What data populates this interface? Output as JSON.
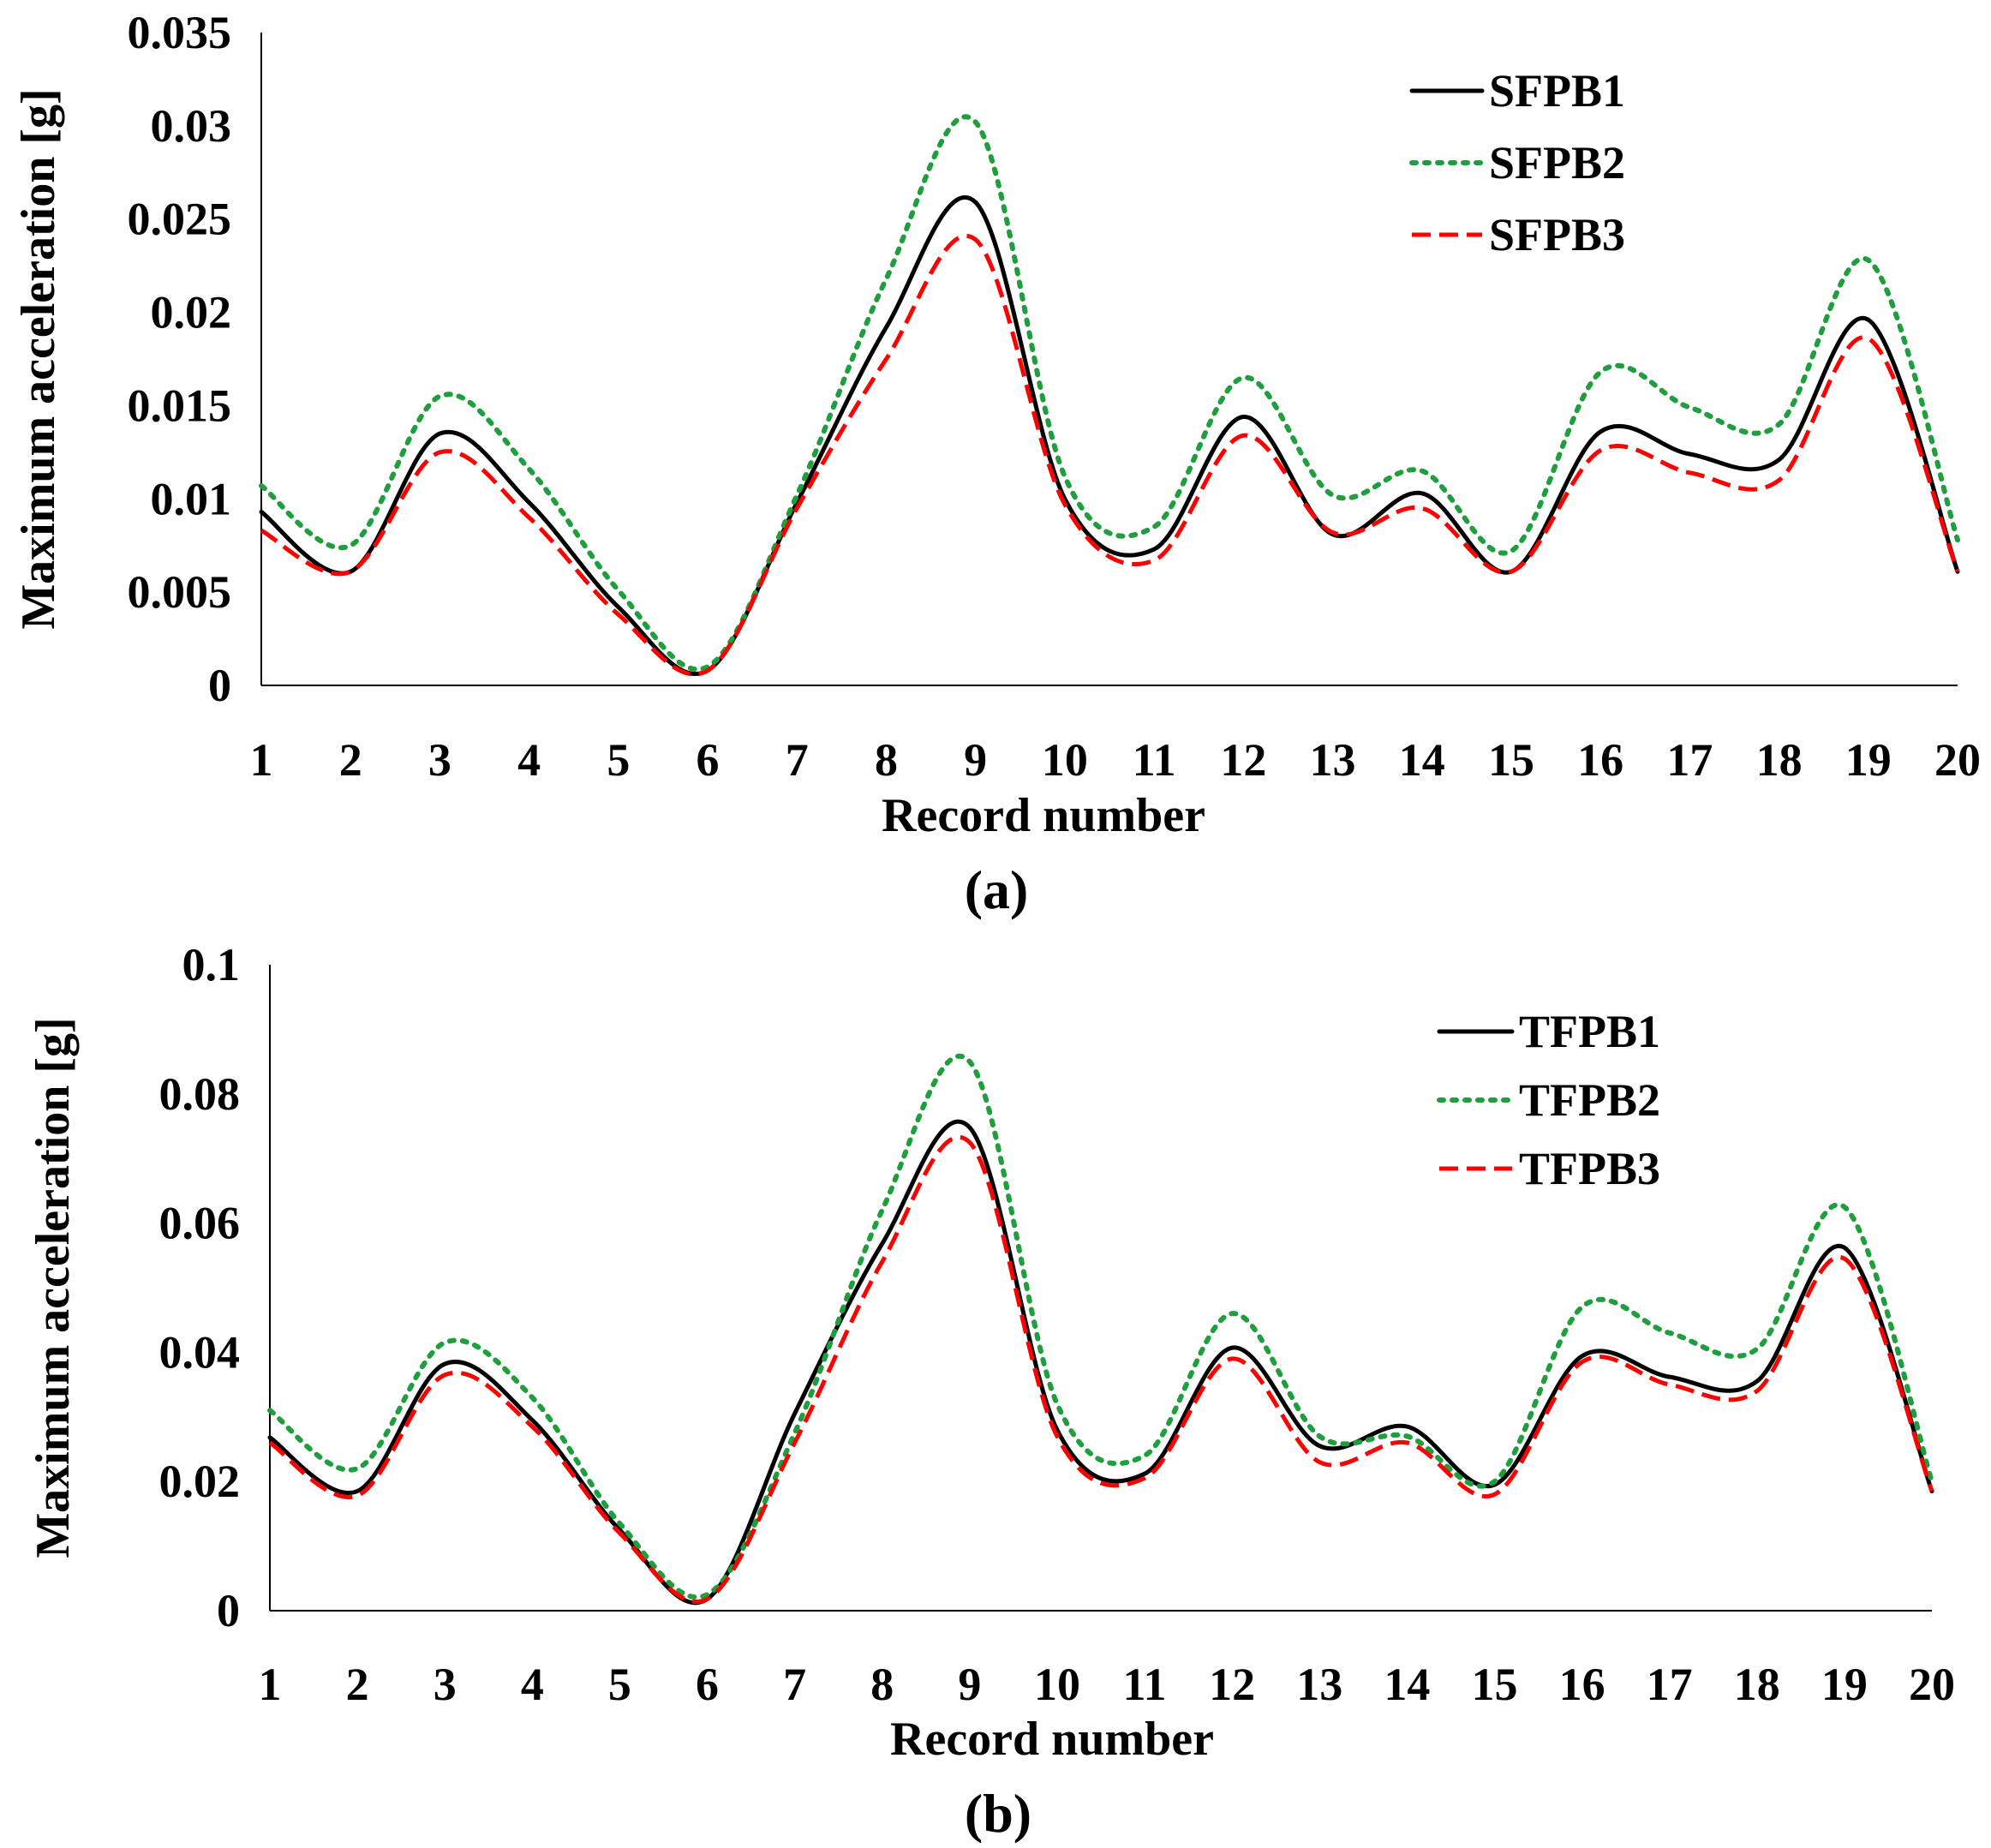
{
  "chart_data": [
    {
      "type": "line",
      "panel_label": "(a)",
      "categories": [
        "1",
        "2",
        "3",
        "4",
        "5",
        "6",
        "7",
        "8",
        "9",
        "10",
        "11",
        "12",
        "13",
        "14",
        "15",
        "16",
        "17",
        "18",
        "19",
        "20"
      ],
      "xlabel": "Record number",
      "ylabel": "Maximum acceleration [g]",
      "ylim": [
        0,
        0.035
      ],
      "yticks": [
        "0",
        "0.005",
        "0.01",
        "0.015",
        "0.02",
        "0.025",
        "0.03",
        "0.035"
      ],
      "grid": false,
      "legend_position": "top-right",
      "series": [
        {
          "name": "SFPB1",
          "color": "#000000",
          "dash": "solid",
          "values": [
            0.0093,
            0.0061,
            0.0135,
            0.0098,
            0.0042,
            0.0008,
            0.0098,
            0.0192,
            0.0259,
            0.01,
            0.0073,
            0.0144,
            0.0081,
            0.0103,
            0.0061,
            0.0136,
            0.0124,
            0.0121,
            0.0196,
            0.0061
          ]
        },
        {
          "name": "SFPB2",
          "color": "#1e9e3c",
          "dash": "dotted",
          "values": [
            0.0107,
            0.0075,
            0.0155,
            0.0116,
            0.0051,
            0.001,
            0.0102,
            0.0218,
            0.0302,
            0.0112,
            0.0085,
            0.0165,
            0.0102,
            0.0115,
            0.0072,
            0.0168,
            0.0149,
            0.014,
            0.0228,
            0.0078
          ]
        },
        {
          "name": "SFPB3",
          "color": "#ff0000",
          "dash": "dashed",
          "values": [
            0.0083,
            0.0061,
            0.0125,
            0.009,
            0.0038,
            0.0008,
            0.0095,
            0.0175,
            0.0239,
            0.0097,
            0.0067,
            0.0134,
            0.0082,
            0.0095,
            0.0061,
            0.0126,
            0.0114,
            0.011,
            0.0186,
            0.0061
          ]
        }
      ]
    },
    {
      "type": "line",
      "panel_label": "(b)",
      "categories": [
        "1",
        "2",
        "3",
        "4",
        "5",
        "6",
        "7",
        "8",
        "9",
        "10",
        "11",
        "12",
        "13",
        "14",
        "15",
        "16",
        "17",
        "18",
        "19",
        "20"
      ],
      "xlabel": "Record number",
      "ylabel": "Maximum acceleration [g]",
      "ylim": [
        0,
        0.1
      ],
      "yticks": [
        "0",
        "0.02",
        "0.04",
        "0.06",
        "0.08",
        "0.1"
      ],
      "grid": false,
      "legend_position": "top-right",
      "series": [
        {
          "name": "TFPB1",
          "color": "#000000",
          "dash": "solid",
          "values": [
            0.0268,
            0.0185,
            0.0382,
            0.0295,
            0.0125,
            0.0018,
            0.0305,
            0.0568,
            0.0748,
            0.028,
            0.0212,
            0.0407,
            0.0255,
            0.0285,
            0.0195,
            0.0394,
            0.0362,
            0.0355,
            0.0562,
            0.0185
          ]
        },
        {
          "name": "TFPB2",
          "color": "#1e9e3c",
          "dash": "dotted",
          "values": [
            0.031,
            0.022,
            0.0415,
            0.033,
            0.0135,
            0.0025,
            0.0275,
            0.062,
            0.085,
            0.032,
            0.024,
            0.046,
            0.027,
            0.027,
            0.02,
            0.047,
            0.043,
            0.0405,
            0.0625,
            0.02
          ]
        },
        {
          "name": "TFPB3",
          "color": "#ff0000",
          "dash": "dashed",
          "values": [
            0.026,
            0.0178,
            0.0365,
            0.0285,
            0.012,
            0.0018,
            0.026,
            0.054,
            0.0725,
            0.027,
            0.0205,
            0.039,
            0.023,
            0.026,
            0.018,
            0.0385,
            0.035,
            0.034,
            0.0545,
            0.0185
          ]
        }
      ]
    }
  ]
}
